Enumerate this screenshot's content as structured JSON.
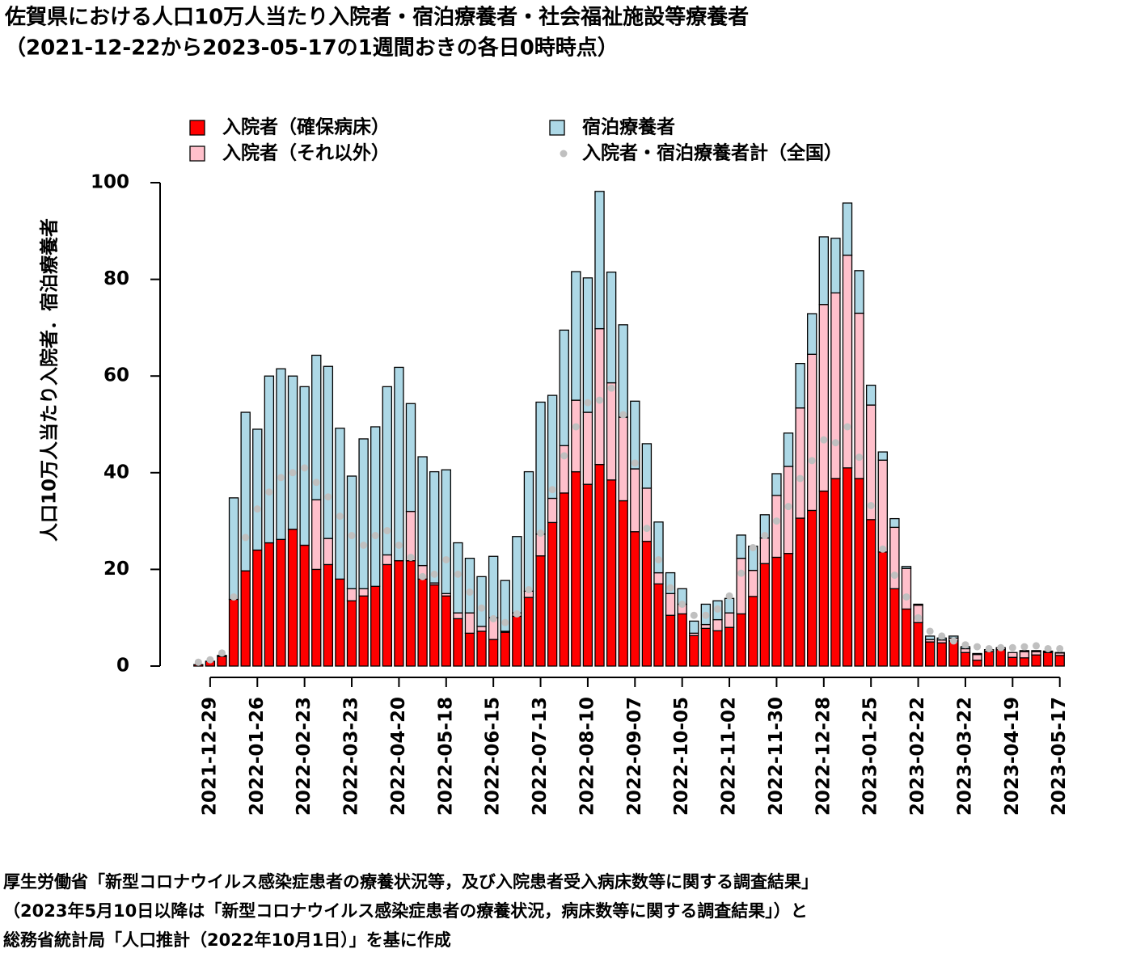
{
  "chart_data": {
    "type": "bar",
    "stacked": true,
    "title": "佐賀県における人口10万人当たり入院者・宿泊療養者・社会福祉施設等療養者",
    "subtitle": "（2021-12-22から2023-05-17の1週間おきの各日0時時点）",
    "ylabel": "人口10万人当たり入院者．宿泊療養者",
    "ylim": [
      0,
      100
    ],
    "yticks": [
      0,
      20,
      40,
      60,
      80,
      100
    ],
    "legend_position": "top",
    "categories": [
      null,
      "2021-12-29",
      null,
      null,
      null,
      "2022-01-26",
      null,
      null,
      null,
      "2022-02-23",
      null,
      null,
      null,
      "2022-03-23",
      null,
      null,
      null,
      "2022-04-20",
      null,
      null,
      null,
      "2022-05-18",
      null,
      null,
      null,
      "2022-06-15",
      null,
      null,
      null,
      "2022-07-13",
      null,
      null,
      null,
      "2022-08-10",
      null,
      null,
      null,
      "2022-09-07",
      null,
      null,
      null,
      "2022-10-05",
      null,
      null,
      null,
      "2022-11-02",
      null,
      null,
      null,
      "2022-11-30",
      null,
      null,
      null,
      "2022-12-28",
      null,
      null,
      null,
      "2023-01-25",
      null,
      null,
      null,
      "2023-02-22",
      null,
      null,
      null,
      "2023-03-22",
      null,
      null,
      null,
      "2023-04-19",
      null,
      null,
      null,
      "2023-05-17"
    ],
    "series": [
      {
        "name": "入院者（確保病床）",
        "color": "#ff0000",
        "type": "bar",
        "values": [
          0.3,
          1,
          2,
          13.8,
          19.7,
          24,
          25.5,
          26.2,
          28.3,
          25,
          20,
          21,
          18,
          13.5,
          14.5,
          16.5,
          21,
          21.8,
          21.8,
          18,
          16.8,
          14.5,
          9.8,
          6.8,
          7.2,
          5.5,
          7,
          10.3,
          14.2,
          22.8,
          29.7,
          35.8,
          40.2,
          37.6,
          41.7,
          38.5,
          34.2,
          27.8,
          25.8,
          17,
          10.5,
          10.8,
          6.3,
          7.8,
          7.3,
          8,
          10.8,
          14.4,
          21.2,
          22.5,
          23.3,
          30.6,
          32.2,
          36.2,
          38.8,
          41,
          38.8,
          30.3,
          23.6,
          16,
          11.8,
          9,
          5,
          4.8,
          5.2,
          2.8,
          1.2,
          3,
          3.4,
          1.8,
          1.7,
          2.3,
          2.8,
          2.2
        ]
      },
      {
        "name": "入院者（それ以外）",
        "color": "#ffc0cb",
        "type": "bar",
        "values": [
          0,
          0,
          0,
          0,
          0,
          0,
          0,
          0,
          0,
          0,
          14.4,
          5.4,
          0,
          2.5,
          1.5,
          0,
          2,
          0,
          10.2,
          2.8,
          0.4,
          0.5,
          1.2,
          4.2,
          1,
          4.5,
          0.2,
          0.7,
          1.3,
          4.5,
          5,
          9.8,
          14.8,
          14.9,
          28.1,
          20.1,
          17.3,
          13,
          11,
          2.3,
          4.5,
          2,
          0.5,
          0.8,
          2.3,
          3,
          11.5,
          5.4,
          5.3,
          12.8,
          18,
          22.8,
          32.3,
          38.6,
          38.4,
          44,
          34.2,
          23.7,
          19,
          12.7,
          8.4,
          3.6,
          0.5,
          0.6,
          0.6,
          0.8,
          1.2,
          0.4,
          0.4,
          1,
          1.3,
          0.7,
          0.2,
          0.5
        ]
      },
      {
        "name": "宿泊療養者",
        "color": "#add8e6",
        "type": "bar",
        "values": [
          0,
          0,
          0.2,
          21,
          32.8,
          25,
          34.5,
          35.3,
          31.7,
          32.8,
          29.9,
          35.6,
          31.2,
          23.3,
          31,
          33,
          34.8,
          40,
          22.3,
          22.5,
          23,
          25.6,
          14.5,
          11.3,
          10.3,
          12.7,
          10.5,
          15.8,
          24.7,
          27.3,
          21.3,
          23.9,
          26.6,
          27.8,
          28.4,
          22.9,
          19.1,
          14,
          9.2,
          10.5,
          4.3,
          3.2,
          2.5,
          4.2,
          3.9,
          3,
          4.8,
          5,
          4.8,
          4.5,
          6.9,
          9.2,
          8.4,
          14,
          11.3,
          10.8,
          8.8,
          4.1,
          1.7,
          1.8,
          0.4,
          0.2,
          0.7,
          0.4,
          0.4,
          0.4,
          0.2,
          0,
          0,
          0,
          0.2,
          0.2,
          0.1,
          0.1
        ]
      },
      {
        "name": "入院者・宿泊療養者計（全国）",
        "color": "#c0c0c0",
        "type": "scatter",
        "values": [
          0.8,
          1.3,
          2.7,
          14.3,
          26.6,
          32.5,
          36,
          39,
          40,
          41,
          38,
          35,
          31,
          27,
          25,
          27,
          28,
          25,
          22.5,
          18.5,
          19,
          22,
          19,
          15.3,
          12,
          9.8,
          9,
          10.8,
          15.8,
          27.5,
          36.5,
          43.5,
          49.5,
          54.5,
          55,
          57.5,
          52,
          42,
          28.5,
          22,
          16.2,
          12.8,
          10.5,
          10.5,
          11.8,
          14.5,
          19.2,
          24.5,
          27,
          30,
          33,
          38.8,
          42.5,
          46.8,
          46.2,
          49.5,
          43.2,
          33.2,
          24.2,
          18.8,
          14.3,
          10,
          7.2,
          6.2,
          5.2,
          4.4,
          4,
          3.6,
          3.8,
          3.8,
          4,
          4.2,
          3.6,
          3.6
        ]
      }
    ],
    "source": [
      "厚生労働省「新型コロナウイルス感染症患者の療養状況等，及び入院患者受入病床数等に関する調査結果」",
      "（2023年5月10日以降は「新型コロナウイルス感染症患者の療養状況，病床数等に関する調査結果」）と",
      "総務省統計局「人口推計（2022年10月1日）」を基に作成"
    ]
  }
}
